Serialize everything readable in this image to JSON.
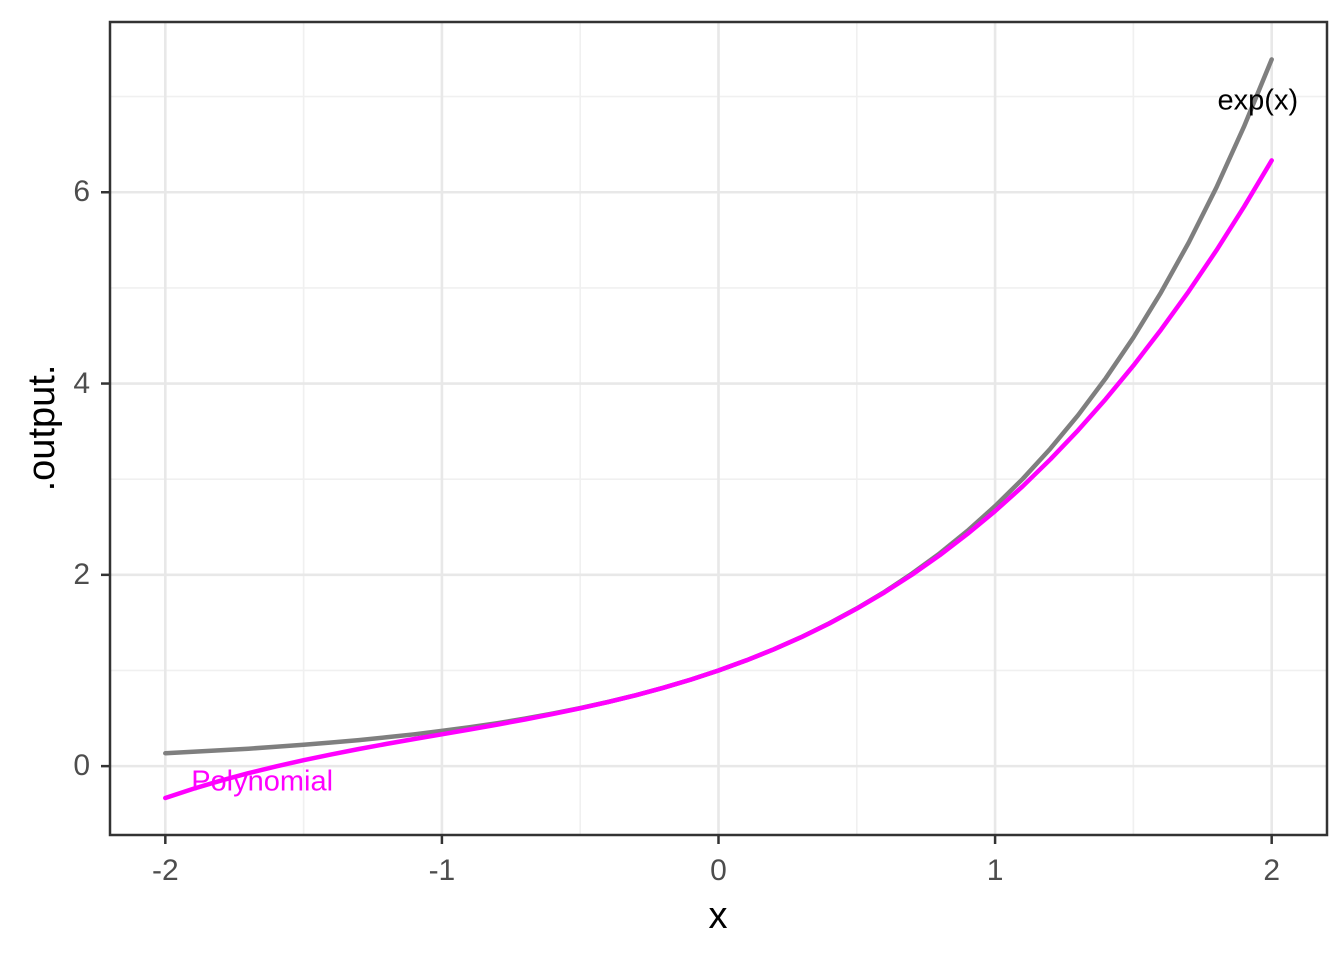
{
  "figure": {
    "background_color": "#FFFFFF",
    "panel": {
      "border_color": "#333333",
      "grid_major_color": "#E8E8E8",
      "grid_minor_color": "#F0F0F0",
      "tick_color": "#333333",
      "tick_label_color": "#4D4D4D"
    }
  },
  "chart_data": {
    "type": "line",
    "title": "",
    "xlabel": "x",
    "ylabel": ".output.",
    "xlim": [
      -2.2,
      2.2
    ],
    "ylim": [
      -0.72,
      7.78
    ],
    "x_ticks": [
      "-2",
      "-1",
      "0",
      "1",
      "2"
    ],
    "x_tick_values": [
      -2,
      -1,
      0,
      1,
      2
    ],
    "y_ticks": [
      "0",
      "2",
      "4",
      "6"
    ],
    "y_tick_values": [
      0,
      2,
      4,
      6
    ],
    "x_minor_values": [
      -1.5,
      -0.5,
      0.5,
      1.5
    ],
    "y_minor_values": [
      1,
      3,
      5,
      7
    ],
    "grid": "major+minor",
    "legend_position": "none (direct curve labels)",
    "series": [
      {
        "name": "exp(x)",
        "color": "#7F7F7F",
        "stroke_width": 4.5,
        "x": [
          -2.0,
          -1.9,
          -1.8,
          -1.7,
          -1.6,
          -1.5,
          -1.4,
          -1.3,
          -1.2,
          -1.1,
          -1.0,
          -0.9,
          -0.8,
          -0.7,
          -0.6,
          -0.5,
          -0.4,
          -0.3,
          -0.2,
          -0.1,
          0.0,
          0.1,
          0.2,
          0.3,
          0.4,
          0.5,
          0.6,
          0.7,
          0.8,
          0.9,
          1.0,
          1.1,
          1.2,
          1.3,
          1.4,
          1.5,
          1.6,
          1.7,
          1.8,
          1.9,
          2.0
        ],
        "y": [
          0.1353,
          0.1496,
          0.1653,
          0.1827,
          0.2019,
          0.2231,
          0.2466,
          0.2725,
          0.3012,
          0.3329,
          0.3679,
          0.4066,
          0.4493,
          0.4966,
          0.5488,
          0.6065,
          0.6703,
          0.7408,
          0.8187,
          0.9048,
          1.0,
          1.1052,
          1.2214,
          1.3499,
          1.4918,
          1.6487,
          1.8221,
          2.0138,
          2.2255,
          2.4596,
          2.7183,
          3.0042,
          3.3201,
          3.6693,
          4.0552,
          4.4817,
          4.953,
          5.4739,
          6.0496,
          6.6859,
          7.3891
        ],
        "label": {
          "text": "exp(x)",
          "x": 1.95,
          "y": 6.95,
          "color": "#000000"
        }
      },
      {
        "name": "Polynomial",
        "color": "#FF00FF",
        "stroke_width": 4.5,
        "x": [
          -2.0,
          -1.9,
          -1.8,
          -1.7,
          -1.6,
          -1.5,
          -1.4,
          -1.3,
          -1.2,
          -1.1,
          -1.0,
          -0.9,
          -0.8,
          -0.7,
          -0.6,
          -0.5,
          -0.4,
          -0.3,
          -0.2,
          -0.1,
          0.0,
          0.1,
          0.2,
          0.3,
          0.4,
          0.5,
          0.6,
          0.7,
          0.8,
          0.9,
          1.0,
          1.1,
          1.2,
          1.3,
          1.4,
          1.5,
          1.6,
          1.7,
          1.8,
          1.9,
          2.0
        ],
        "y": [
          -0.3333,
          -0.2382,
          -0.152,
          -0.0738,
          -0.0027,
          0.0625,
          0.1227,
          0.1788,
          0.232,
          0.2832,
          0.3333,
          0.3835,
          0.4347,
          0.4878,
          0.544,
          0.6042,
          0.6693,
          0.7405,
          0.8187,
          0.9048,
          1.0,
          1.1052,
          1.2213,
          1.3495,
          1.4907,
          1.6458,
          1.816,
          2.0028,
          2.2053,
          2.4265,
          2.6667,
          2.9268,
          3.208,
          3.5112,
          3.8373,
          4.1875,
          4.5627,
          4.9638,
          5.392,
          5.8482,
          6.3333
        ],
        "label": {
          "text": "Polynomial",
          "x": -1.65,
          "y": -0.17,
          "color": "#FF00FF"
        }
      }
    ]
  }
}
